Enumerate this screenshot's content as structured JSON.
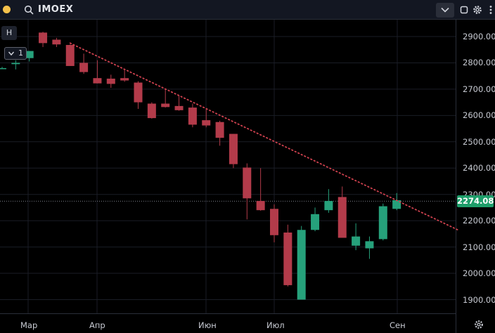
{
  "toolbar": {
    "symbol": "IMOEX",
    "icons": [
      "search-icon",
      "chevron-down-icon",
      "square-icon",
      "gear-icon",
      "more-icon"
    ]
  },
  "left_panel": {
    "h_button": "H",
    "layers_count": "1"
  },
  "colors": {
    "up": "#26a17b",
    "down": "#b33b4a",
    "trendline": "#d0424f",
    "background": "#000000",
    "price_badge": "#1e9e6a",
    "grid": "#1a1d26"
  },
  "chart_data": {
    "type": "candlestick",
    "symbol": "IMOEX",
    "y_ticks": [
      "2900.00",
      "2800.00",
      "2700.00",
      "2600.00",
      "2500.00",
      "2400.00",
      "2300.00",
      "2200.00",
      "2100.00",
      "2000.00",
      "1900.00"
    ],
    "x_ticks": [
      "Мар",
      "Апр",
      "Июн",
      "Июл",
      "Сен"
    ],
    "last_price": "2274.08",
    "ylim": [
      1820,
      2940
    ],
    "grid": true,
    "candles": [
      {
        "o": 2780,
        "h": 2785,
        "l": 2780,
        "c": 2780
      },
      {
        "o": 2795,
        "h": 2810,
        "l": 2775,
        "c": 2800
      },
      {
        "o": 2818,
        "h": 2845,
        "l": 2805,
        "c": 2845
      },
      {
        "o": 2915,
        "h": 2918,
        "l": 2860,
        "c": 2875
      },
      {
        "o": 2888,
        "h": 2895,
        "l": 2860,
        "c": 2870
      },
      {
        "o": 2868,
        "h": 2870,
        "l": 2790,
        "c": 2788
      },
      {
        "o": 2800,
        "h": 2835,
        "l": 2758,
        "c": 2765
      },
      {
        "o": 2742,
        "h": 2810,
        "l": 2722,
        "c": 2722
      },
      {
        "o": 2740,
        "h": 2755,
        "l": 2705,
        "c": 2720
      },
      {
        "o": 2742,
        "h": 2775,
        "l": 2728,
        "c": 2733
      },
      {
        "o": 2725,
        "h": 2730,
        "l": 2625,
        "c": 2650
      },
      {
        "o": 2645,
        "h": 2650,
        "l": 2588,
        "c": 2590
      },
      {
        "o": 2645,
        "h": 2700,
        "l": 2630,
        "c": 2632
      },
      {
        "o": 2636,
        "h": 2675,
        "l": 2618,
        "c": 2620
      },
      {
        "o": 2630,
        "h": 2645,
        "l": 2555,
        "c": 2565
      },
      {
        "o": 2582,
        "h": 2625,
        "l": 2555,
        "c": 2562
      },
      {
        "o": 2575,
        "h": 2580,
        "l": 2485,
        "c": 2515
      },
      {
        "o": 2530,
        "h": 2530,
        "l": 2400,
        "c": 2415
      },
      {
        "o": 2402,
        "h": 2418,
        "l": 2205,
        "c": 2285
      },
      {
        "o": 2275,
        "h": 2400,
        "l": 2238,
        "c": 2240
      },
      {
        "o": 2245,
        "h": 2262,
        "l": 2118,
        "c": 2145
      },
      {
        "o": 2155,
        "h": 2185,
        "l": 1950,
        "c": 1955
      },
      {
        "o": 1900,
        "h": 2180,
        "l": 1900,
        "c": 2165
      },
      {
        "o": 2165,
        "h": 2250,
        "l": 2160,
        "c": 2225
      },
      {
        "o": 2240,
        "h": 2320,
        "l": 2230,
        "c": 2275
      },
      {
        "o": 2290,
        "h": 2330,
        "l": 2135,
        "c": 2135
      },
      {
        "o": 2105,
        "h": 2190,
        "l": 2088,
        "c": 2140
      },
      {
        "o": 2095,
        "h": 2140,
        "l": 2055,
        "c": 2122
      },
      {
        "o": 2130,
        "h": 2265,
        "l": 2125,
        "c": 2255
      },
      {
        "o": 2245,
        "h": 2305,
        "l": 2240,
        "c": 2278
      }
    ],
    "trendline": [
      {
        "i": 5,
        "price": 2875
      },
      {
        "i": 33.5,
        "price": 2165
      }
    ],
    "price_line": 2274.08
  }
}
